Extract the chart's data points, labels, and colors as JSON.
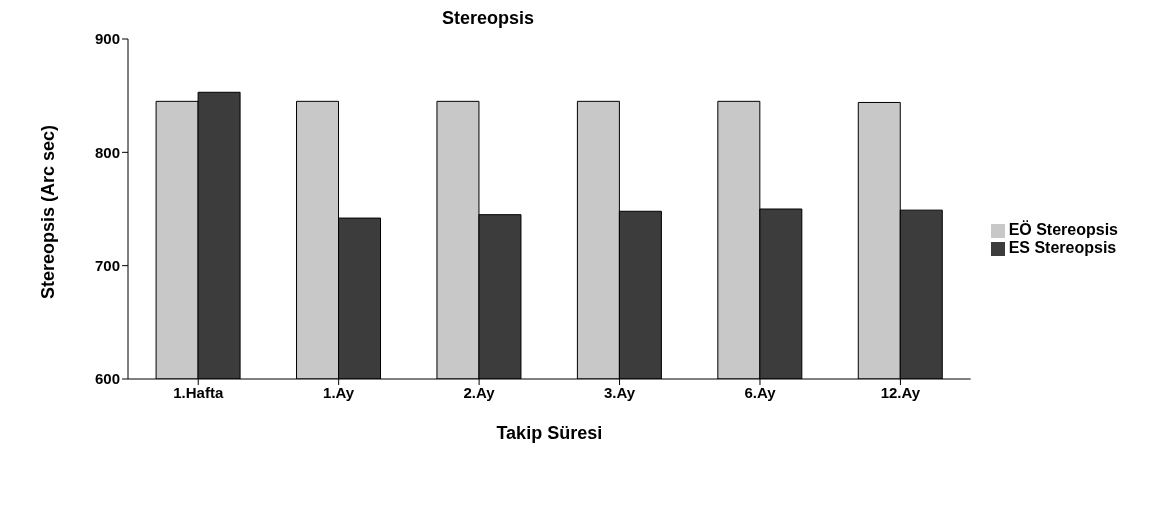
{
  "chart_data": {
    "type": "bar",
    "title": "Stereopsis",
    "xlabel": "Takip Süresi",
    "ylabel": "Stereopsis (Arc sec)",
    "categories": [
      "1.Hafta",
      "1.Ay",
      "2.Ay",
      "3.Ay",
      "6.Ay",
      "12.Ay"
    ],
    "series": [
      {
        "name": "EÖ Stereopsis",
        "color": "#c8c8c8",
        "values": [
          845,
          845,
          845,
          845,
          845,
          844
        ]
      },
      {
        "name": "ES Stereopsis",
        "color": "#3c3c3c",
        "values": [
          853,
          742,
          745,
          748,
          750,
          749
        ]
      }
    ],
    "ylim": [
      600,
      900
    ],
    "yticks": [
      600,
      700,
      800,
      900
    ],
    "grid": false,
    "legend": "right"
  }
}
